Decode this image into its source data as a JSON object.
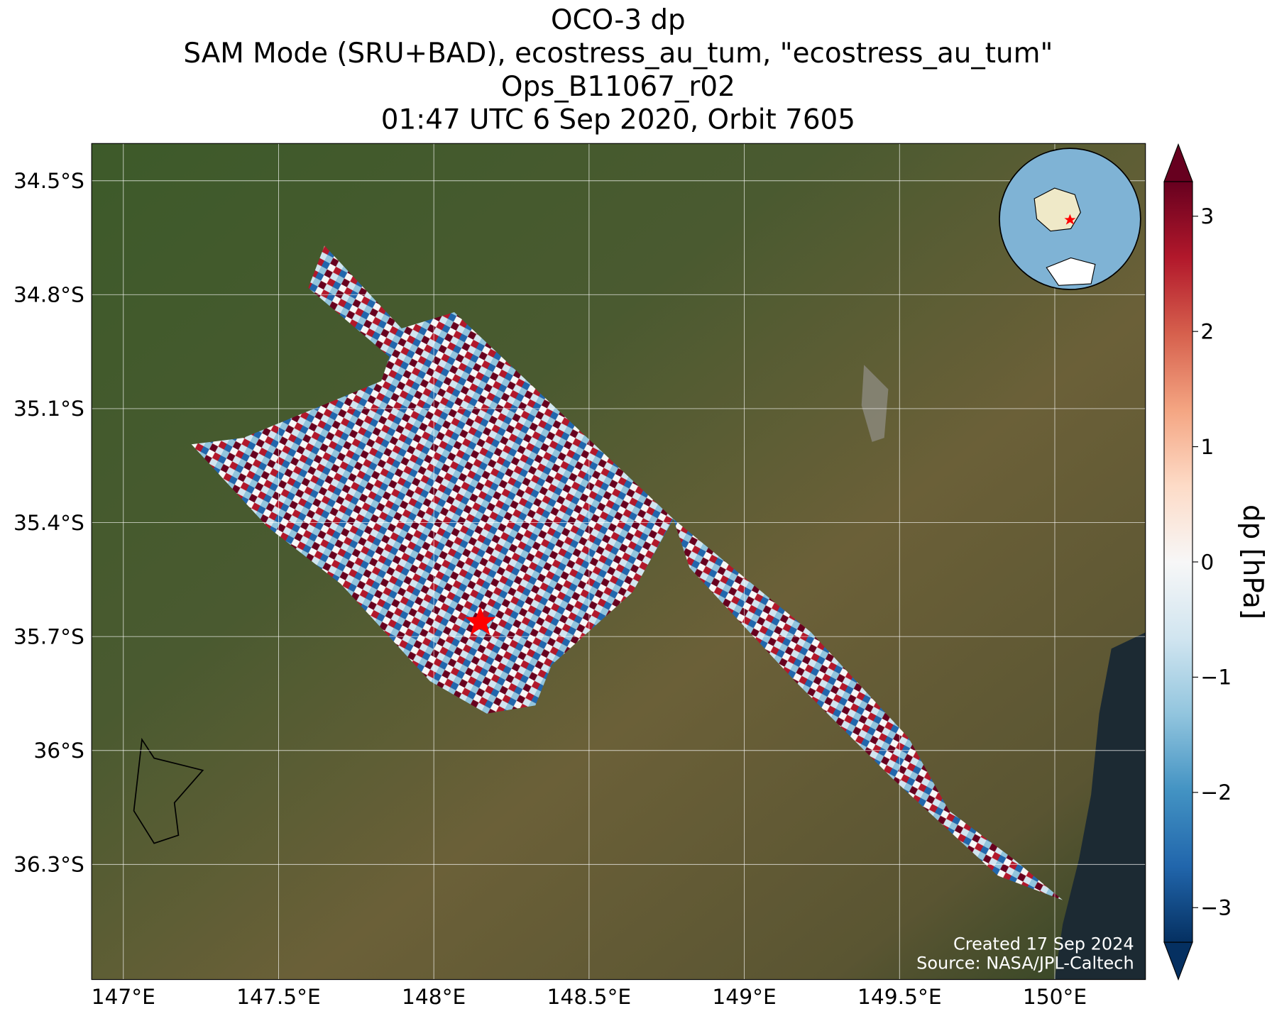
{
  "chart_data": {
    "type": "map",
    "title": [
      "OCO-3 dp",
      "SAM Mode (SRU+BAD), ecostress_au_tum, \"ecostress_au_tum\"",
      "Ops_B11067_r02",
      "01:47 UTC 6 Sep 2020, Orbit 7605"
    ],
    "xlim": [
      146.898,
      150.292
    ],
    "xticks": [
      {
        "value": 147,
        "label": "147°E"
      },
      {
        "value": 147.5,
        "label": "147.5°E"
      },
      {
        "value": 148,
        "label": "148°E"
      },
      {
        "value": 148.5,
        "label": "148.5°E"
      },
      {
        "value": 149,
        "label": "149°E"
      },
      {
        "value": 149.5,
        "label": "149.5°E"
      },
      {
        "value": 150,
        "label": "150°E"
      }
    ],
    "ylim": [
      -36.603,
      -34.402
    ],
    "yticks": [
      {
        "value": -34.5,
        "label": "34.5°S"
      },
      {
        "value": -34.8,
        "label": "34.8°S"
      },
      {
        "value": -35.1,
        "label": "35.1°S"
      },
      {
        "value": -35.4,
        "label": "35.4°S"
      },
      {
        "value": -35.7,
        "label": "35.7°S"
      },
      {
        "value": -36,
        "label": "36°S"
      },
      {
        "value": -36.3,
        "label": "36.3°S"
      }
    ],
    "grid": true,
    "colorbar": {
      "label": "dp [hPa]",
      "clim": [
        -3.3,
        3.3
      ],
      "ticks": [
        {
          "value": -3,
          "label": "−3"
        },
        {
          "value": -2,
          "label": "−2"
        },
        {
          "value": -1,
          "label": "−1"
        },
        0,
        1,
        2,
        3
      ],
      "colors": [
        "#67001f",
        "#b2182b",
        "#d6604d",
        "#f4a582",
        "#fddbc7",
        "#f7f7f7",
        "#d1e5f0",
        "#92c5de",
        "#4393c3",
        "#2166ac",
        "#053061"
      ]
    },
    "credits": [
      "Created 17 Sep 2024",
      "Source: NASA/JPL-Caltech"
    ]
  }
}
